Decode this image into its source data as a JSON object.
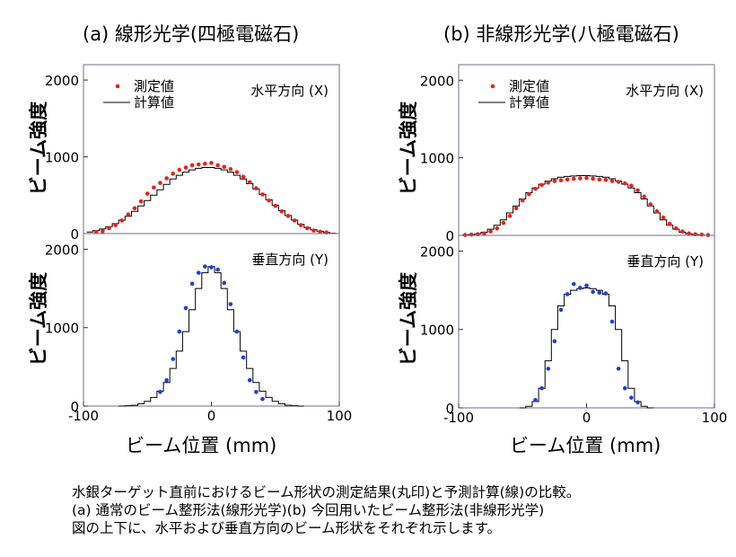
{
  "panels": {
    "a": {
      "title": "(a) 線形光学(四極電磁石)"
    },
    "b": {
      "title": "(b) 非線形光学(八極電磁石)"
    }
  },
  "ylabel": "ビーム強度",
  "xlabel": "ビーム位置 (mm)",
  "legend": {
    "measured": "測定値",
    "calculated": "計算値"
  },
  "direction": {
    "horizontal": "水平方向 (X)",
    "vertical": "垂直方向 (Y)"
  },
  "caption": {
    "line1": "水銀ターゲット直前におけるビーム形状の測定結果(丸印)と予測計算(線)の比較。",
    "line2": "(a) 通常のビーム整形法(線形光学)(b) 今回用いたビーム整形法(非線形光学)",
    "line3": "図の上下に、水平および垂直方向のビーム形状をそれぞれ示します。"
  },
  "colors": {
    "horizontal_points": "#e8221a",
    "vertical_points": "#1f3fd6",
    "line": "#000000",
    "frame": "#7a6a8a"
  },
  "chart_data": [
    {
      "id": "a-top",
      "type": "scatter+step",
      "title": "水平方向 (X)",
      "xlim": [
        -100,
        100
      ],
      "ylim": [
        0,
        2200
      ],
      "yticks": [
        0,
        1000,
        2000
      ],
      "xticks": [],
      "legend": [
        "測定値",
        "計算値"
      ],
      "legend_position": "top-left",
      "measured": {
        "x": [
          -90,
          -85,
          -80,
          -75,
          -70,
          -65,
          -60,
          -55,
          -50,
          -45,
          -40,
          -35,
          -30,
          -25,
          -20,
          -15,
          -10,
          -5,
          0,
          5,
          10,
          15,
          20,
          25,
          30,
          35,
          40,
          45,
          50,
          55,
          60,
          65,
          70,
          75,
          80,
          85,
          90
        ],
        "y": [
          20,
          30,
          70,
          110,
          170,
          250,
          330,
          420,
          520,
          600,
          660,
          720,
          780,
          830,
          860,
          890,
          900,
          910,
          920,
          890,
          870,
          840,
          800,
          740,
          670,
          590,
          510,
          430,
          360,
          290,
          230,
          170,
          110,
          70,
          40,
          25,
          15
        ]
      },
      "calculated": {
        "x": [
          -95,
          -90,
          -85,
          -80,
          -75,
          -70,
          -65,
          -60,
          -55,
          -50,
          -45,
          -40,
          -35,
          -30,
          -25,
          -20,
          -15,
          -10,
          -5,
          0,
          5,
          10,
          15,
          20,
          25,
          30,
          35,
          40,
          45,
          50,
          55,
          60,
          65,
          70,
          75,
          80,
          85,
          90,
          95
        ],
        "y": [
          20,
          40,
          60,
          90,
          130,
          175,
          225,
          290,
          360,
          430,
          500,
          570,
          640,
          710,
          760,
          800,
          830,
          850,
          860,
          860,
          850,
          830,
          800,
          760,
          710,
          650,
          580,
          510,
          440,
          370,
          300,
          235,
          175,
          120,
          80,
          50,
          30,
          15,
          5
        ]
      }
    },
    {
      "id": "a-bottom",
      "type": "scatter+step",
      "title": "垂直方向 (Y)",
      "xlim": [
        -100,
        100
      ],
      "ylim": [
        0,
        2200
      ],
      "yticks": [
        0,
        1000,
        2000
      ],
      "xticks": [
        -100,
        0,
        100
      ],
      "measured": {
        "x": [
          -40,
          -35,
          -30,
          -25,
          -20,
          -15,
          -10,
          -5,
          0,
          5,
          10,
          15,
          20,
          25,
          30,
          35,
          40
        ],
        "y": [
          180,
          330,
          600,
          950,
          1250,
          1560,
          1700,
          1780,
          1770,
          1740,
          1570,
          1300,
          950,
          620,
          330,
          180,
          90
        ]
      },
      "calculated": {
        "x": [
          -70,
          -65,
          -60,
          -55,
          -50,
          -45,
          -40,
          -35,
          -30,
          -25,
          -20,
          -15,
          -10,
          -5,
          0,
          5,
          10,
          15,
          20,
          25,
          30,
          35,
          40,
          45,
          50,
          55,
          60,
          65,
          70
        ],
        "y": [
          0,
          5,
          10,
          30,
          60,
          110,
          190,
          300,
          480,
          700,
          950,
          1230,
          1500,
          1700,
          1780,
          1700,
          1500,
          1230,
          950,
          700,
          480,
          300,
          190,
          110,
          60,
          30,
          10,
          5,
          0
        ]
      }
    },
    {
      "id": "b-top",
      "type": "scatter+step",
      "title": "水平方向 (X)",
      "xlim": [
        -100,
        100
      ],
      "ylim": [
        0,
        2200
      ],
      "yticks": [
        0,
        1000,
        2000
      ],
      "xticks": [],
      "legend": [
        "測定値",
        "計算値"
      ],
      "legend_position": "top-left",
      "measured": {
        "x": [
          -95,
          -90,
          -85,
          -80,
          -75,
          -70,
          -65,
          -60,
          -55,
          -50,
          -45,
          -40,
          -35,
          -30,
          -25,
          -20,
          -15,
          -10,
          -5,
          0,
          5,
          10,
          15,
          20,
          25,
          30,
          35,
          40,
          45,
          50,
          55,
          60,
          65,
          70,
          75,
          80,
          85,
          90,
          95
        ],
        "y": [
          5,
          10,
          15,
          25,
          50,
          90,
          160,
          250,
          350,
          450,
          530,
          600,
          650,
          680,
          700,
          710,
          720,
          730,
          735,
          740,
          730,
          720,
          715,
          700,
          690,
          670,
          640,
          580,
          500,
          400,
          310,
          230,
          150,
          90,
          50,
          25,
          15,
          10,
          5
        ]
      },
      "calculated": {
        "x": [
          -95,
          -90,
          -85,
          -80,
          -75,
          -70,
          -65,
          -60,
          -55,
          -50,
          -45,
          -40,
          -35,
          -30,
          -25,
          -20,
          -15,
          -10,
          -5,
          0,
          5,
          10,
          15,
          20,
          25,
          30,
          35,
          40,
          45,
          50,
          55,
          60,
          65,
          70,
          75,
          80,
          85,
          90,
          95
        ],
        "y": [
          5,
          10,
          20,
          40,
          80,
          130,
          200,
          290,
          380,
          470,
          550,
          610,
          660,
          700,
          730,
          750,
          760,
          765,
          770,
          770,
          765,
          760,
          750,
          730,
          700,
          660,
          610,
          550,
          470,
          380,
          290,
          200,
          130,
          80,
          40,
          20,
          10,
          5,
          0
        ]
      }
    },
    {
      "id": "b-bottom",
      "type": "scatter+step",
      "title": "垂直方向 (Y)",
      "xlim": [
        -100,
        100
      ],
      "ylim": [
        0,
        2200
      ],
      "yticks": [
        0,
        1000,
        2000
      ],
      "xticks": [
        -100,
        0,
        100
      ],
      "measured": {
        "x": [
          -40,
          -35,
          -30,
          -25,
          -20,
          -15,
          -10,
          -5,
          0,
          5,
          10,
          15,
          20,
          25,
          30,
          35,
          40
        ],
        "y": [
          100,
          250,
          500,
          850,
          1250,
          1450,
          1580,
          1530,
          1560,
          1480,
          1470,
          1460,
          1100,
          500,
          250,
          130,
          70
        ]
      },
      "calculated": {
        "x": [
          -50,
          -45,
          -40,
          -35,
          -30,
          -25,
          -20,
          -15,
          -10,
          -5,
          0,
          5,
          10,
          15,
          20,
          25,
          30,
          35,
          40,
          45,
          50
        ],
        "y": [
          0,
          20,
          80,
          250,
          600,
          1000,
          1300,
          1450,
          1500,
          1520,
          1530,
          1520,
          1500,
          1450,
          1300,
          1000,
          600,
          250,
          80,
          20,
          0
        ]
      }
    }
  ]
}
